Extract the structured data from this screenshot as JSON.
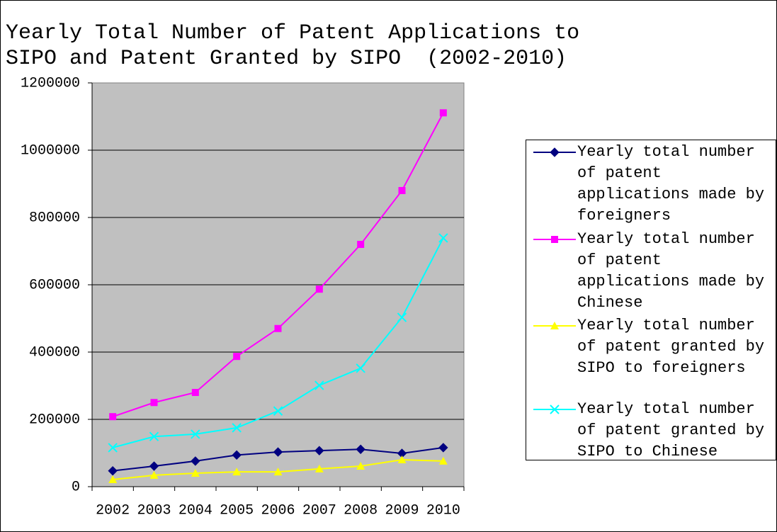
{
  "chart_data": {
    "type": "line",
    "title": [
      "Yearly Total Number of Patent Applications to",
      "SIPO and Patent Granted by SIPO  (2002-2010)"
    ],
    "categories": [
      "2002",
      "2003",
      "2004",
      "2005",
      "2006",
      "2007",
      "2008",
      "2009",
      "2010"
    ],
    "series": [
      {
        "name": "Yearly total number of patent applications made by foreigners",
        "color": "#000080",
        "marker": "diamond",
        "values": [
          47000,
          61000,
          76000,
          94000,
          103000,
          107000,
          111000,
          99000,
          116000
        ]
      },
      {
        "name": "Yearly total number of patent applications made by Chinese",
        "color": "#ff00ff",
        "marker": "square",
        "values": [
          208000,
          250000,
          280000,
          387000,
          470000,
          587000,
          720000,
          880000,
          1111000
        ]
      },
      {
        "name": "Yearly total number of patent granted by SIPO to foreigners",
        "color": "#ffff00",
        "marker": "triangle",
        "values": [
          21000,
          34000,
          40000,
          44000,
          44000,
          53000,
          61000,
          80000,
          76000
        ]
      },
      {
        "name": "Yearly total number of patent granted by SIPO to Chinese",
        "color": "#00ffff",
        "marker": "x",
        "values": [
          116000,
          149000,
          156000,
          175000,
          225000,
          301000,
          352000,
          503000,
          739000
        ]
      }
    ],
    "ylim": [
      0,
      1200000
    ],
    "yticks": [
      0,
      200000,
      400000,
      600000,
      800000,
      1000000,
      1200000
    ],
    "grid": true,
    "legend": "right"
  }
}
